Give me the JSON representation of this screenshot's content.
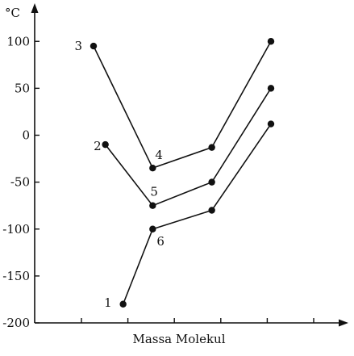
{
  "chart_data": {
    "type": "line",
    "xlabel": "Massa Molekul",
    "ylabel": "°C",
    "ylim": [
      -200,
      120
    ],
    "yticks": [
      100,
      50,
      0,
      -50,
      -100,
      -150,
      -200
    ],
    "x_tick_labels": false,
    "x_arrow": true,
    "y_arrow": true,
    "grid": false,
    "series": [
      {
        "points": [
          {
            "x": 1,
            "y": 95,
            "label": "3"
          },
          {
            "x": 2,
            "y": -35,
            "label": "4"
          },
          {
            "x": 3,
            "y": -13
          },
          {
            "x": 4,
            "y": 100
          }
        ]
      },
      {
        "points": [
          {
            "x": 1.2,
            "y": -10,
            "label": "2"
          },
          {
            "x": 2,
            "y": -75,
            "label": "5"
          },
          {
            "x": 3,
            "y": -50
          },
          {
            "x": 4,
            "y": 50
          }
        ]
      },
      {
        "points": [
          {
            "x": 1.5,
            "y": -180,
            "label": "1"
          },
          {
            "x": 2,
            "y": -100,
            "label": "6"
          },
          {
            "x": 3,
            "y": -80
          },
          {
            "x": 4,
            "y": 12
          }
        ]
      }
    ]
  }
}
